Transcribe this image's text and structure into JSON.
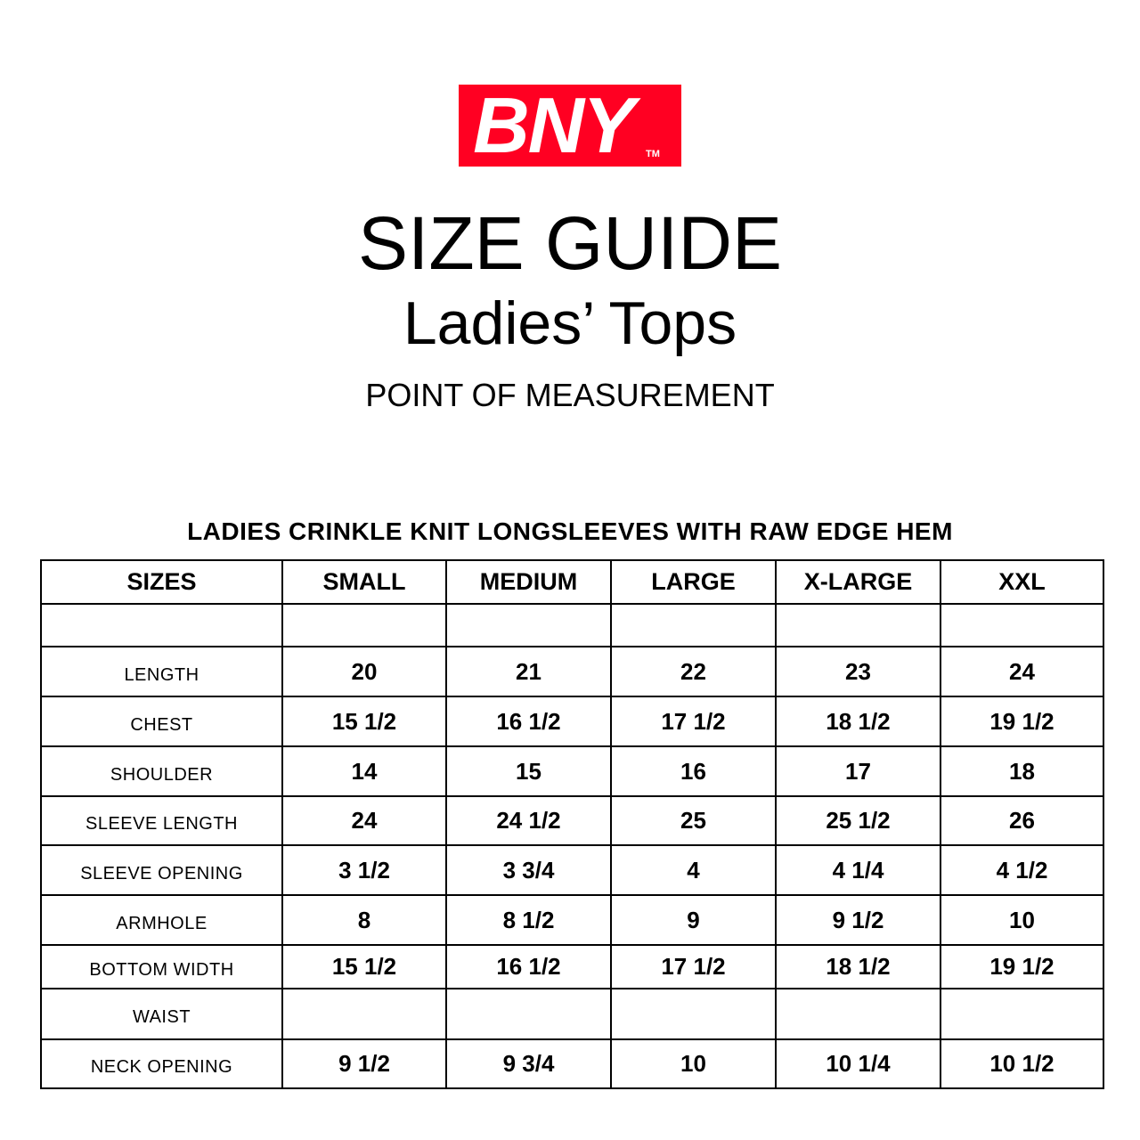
{
  "logo": {
    "text": "BNY",
    "tm": "TM",
    "color": "#ff0022"
  },
  "title": "SIZE GUIDE",
  "subtitle": "Ladies’ Tops",
  "section": "POINT OF MEASUREMENT",
  "product": "LADIES CRINKLE KNIT LONGSLEEVES WITH RAW EDGE HEM",
  "table": {
    "headers": [
      "SIZES",
      "SMALL",
      "MEDIUM",
      "LARGE",
      "X-LARGE",
      "XXL"
    ],
    "rows": [
      {
        "label": "",
        "values": [
          "",
          "",
          "",
          "",
          ""
        ]
      },
      {
        "label": "LENGTH",
        "values": [
          "20",
          "21",
          "22",
          "23",
          "24"
        ]
      },
      {
        "label": "CHEST",
        "values": [
          "15 1/2",
          "16 1/2",
          "17 1/2",
          "18 1/2",
          "19 1/2"
        ]
      },
      {
        "label": "SHOULDER",
        "values": [
          "14",
          "15",
          "16",
          "17",
          "18"
        ]
      },
      {
        "label": "SLEEVE LENGTH",
        "values": [
          "24",
          "24 1/2",
          "25",
          "25 1/2",
          "26"
        ]
      },
      {
        "label": "SLEEVE OPENING",
        "values": [
          "3 1/2",
          "3 3/4",
          "4",
          "4 1/4",
          "4 1/2"
        ]
      },
      {
        "label": "ARMHOLE",
        "values": [
          "8",
          "8 1/2",
          "9",
          "9 1/2",
          "10"
        ]
      },
      {
        "label": "BOTTOM WIDTH",
        "values": [
          "15 1/2",
          "16 1/2",
          "17 1/2",
          "18 1/2",
          "19 1/2"
        ]
      },
      {
        "label": "WAIST",
        "values": [
          "",
          "",
          "",
          "",
          ""
        ]
      },
      {
        "label": "NECK OPENING",
        "values": [
          "9 1/2",
          "9 3/4",
          "10",
          "10 1/4",
          "10 1/2"
        ]
      }
    ]
  }
}
